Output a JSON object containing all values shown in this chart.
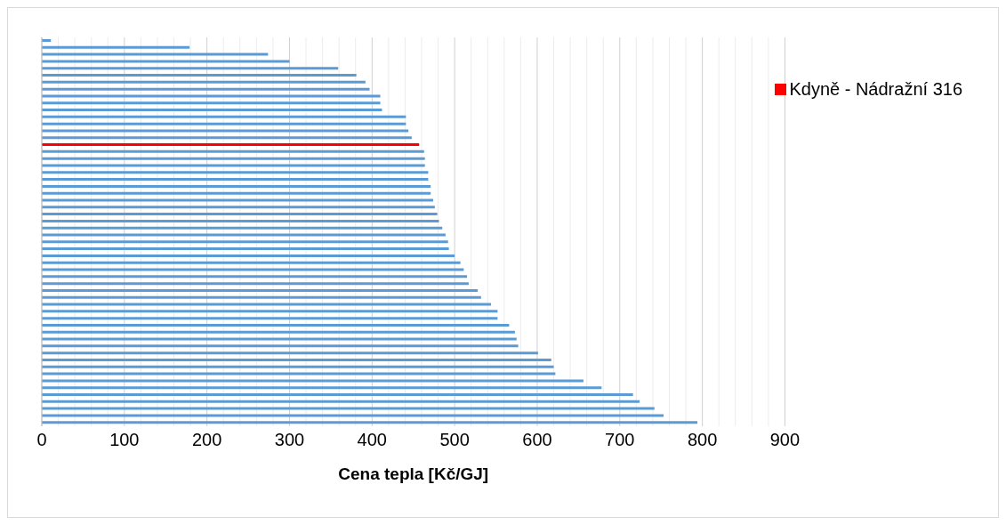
{
  "chart_data": {
    "type": "bar",
    "orientation": "horizontal",
    "stacked": true,
    "categories": [
      null,
      null,
      null,
      null,
      null,
      null,
      null,
      null,
      null,
      null,
      null,
      null,
      null,
      null,
      null,
      null,
      null,
      null,
      null,
      null,
      null,
      null,
      null,
      null,
      null,
      null,
      null,
      null,
      null,
      null,
      null,
      null,
      null,
      null,
      null,
      null,
      null,
      null,
      null,
      null,
      null,
      null,
      null,
      null,
      null,
      null,
      null,
      null,
      null,
      null,
      null,
      null,
      null,
      null,
      null,
      null
    ],
    "series": [
      {
        "color": "#5b9bd5",
        "values": [
          11,
          179,
          274,
          300,
          359,
          381,
          392,
          397,
          410,
          410,
          412,
          441,
          441,
          444,
          448,
          null,
          463,
          464,
          464,
          468,
          468,
          471,
          471,
          474,
          476,
          479,
          481,
          485,
          489,
          492,
          493,
          500,
          507,
          511,
          515,
          517,
          528,
          532,
          544,
          552,
          552,
          566,
          573,
          575,
          577,
          601,
          617,
          620,
          622,
          656,
          678,
          716,
          724,
          742,
          753,
          794
        ]
      },
      {
        "name": "Kdyně - Nádražní 316",
        "color": "#ff0000",
        "values": [
          null,
          null,
          null,
          null,
          null,
          null,
          null,
          null,
          null,
          null,
          null,
          null,
          null,
          null,
          null,
          457,
          null,
          null,
          null,
          null,
          null,
          null,
          null,
          null,
          null,
          null,
          null,
          null,
          null,
          null,
          null,
          null,
          null,
          null,
          null,
          null,
          null,
          null,
          null,
          null,
          null,
          null,
          null,
          null,
          null,
          null,
          null,
          null,
          null,
          null,
          null,
          null,
          null,
          null,
          null,
          null
        ]
      }
    ],
    "xlabel": "Cena tepla [Kč/GJ]",
    "xlim": [
      0,
      900
    ],
    "xticks": [
      0,
      {
        "value": 20,
        "label": null
      },
      {
        "value": 40,
        "label": null
      },
      {
        "value": 60,
        "label": null
      },
      {
        "value": 80,
        "label": null
      },
      100,
      {
        "value": 120,
        "label": null
      },
      {
        "value": 140,
        "label": null
      },
      {
        "value": 160,
        "label": null
      },
      {
        "value": 180,
        "label": null
      },
      200,
      {
        "value": 220,
        "label": null
      },
      {
        "value": 240,
        "label": null
      },
      {
        "value": 260,
        "label": null
      },
      {
        "value": 280,
        "label": null
      },
      300,
      {
        "value": 320,
        "label": null
      },
      {
        "value": 340,
        "label": null
      },
      {
        "value": 360,
        "label": null
      },
      {
        "value": 380,
        "label": null
      },
      400,
      {
        "value": 420,
        "label": null
      },
      {
        "value": 440,
        "label": null
      },
      {
        "value": 460,
        "label": null
      },
      {
        "value": 480,
        "label": null
      },
      500,
      {
        "value": 520,
        "label": null
      },
      {
        "value": 540,
        "label": null
      },
      {
        "value": 560,
        "label": null
      },
      {
        "value": 580,
        "label": null
      },
      600,
      {
        "value": 620,
        "label": null
      },
      {
        "value": 640,
        "label": null
      },
      {
        "value": 660,
        "label": null
      },
      {
        "value": 680,
        "label": null
      },
      700,
      {
        "value": 720,
        "label": null
      },
      {
        "value": 740,
        "label": null
      },
      {
        "value": 760,
        "label": null
      },
      {
        "value": 780,
        "label": null
      },
      800,
      {
        "value": 820,
        "label": null
      },
      {
        "value": 840,
        "label": null
      },
      {
        "value": 860,
        "label": null
      },
      {
        "value": 880,
        "label": null
      },
      900
    ],
    "grid": "x",
    "legend": "top right",
    "tick_labels": "x"
  }
}
